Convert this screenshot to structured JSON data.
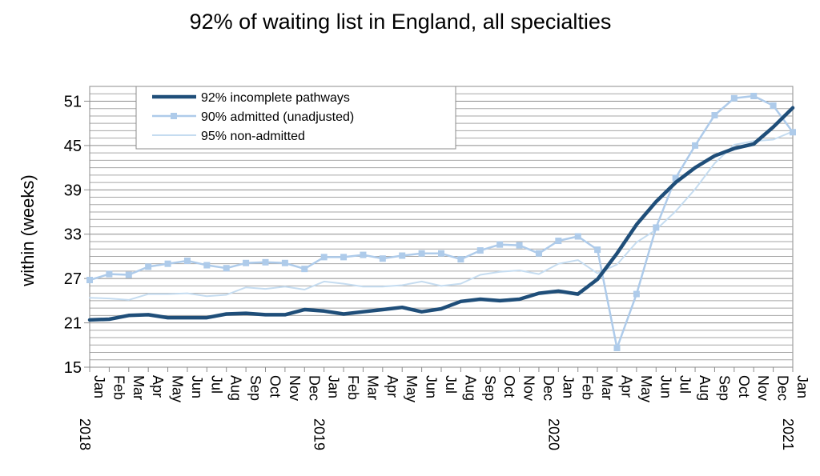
{
  "chart_data": {
    "type": "line",
    "title": "92% of waiting list in England, all specialties",
    "ylabel": "within  (weeks)",
    "xlabel": "",
    "ylim": [
      15,
      53
    ],
    "y_ticks": [
      15,
      21,
      27,
      33,
      39,
      45,
      51
    ],
    "grid": "horizontal minor gridlines every 1 week",
    "legend_position": "top-left inside plot",
    "categories": [
      "Jan",
      "Feb",
      "Mar",
      "Apr",
      "May",
      "Jun",
      "Jul",
      "Aug",
      "Sep",
      "Oct",
      "Nov",
      "Dec",
      "Jan",
      "Feb",
      "Mar",
      "Apr",
      "May",
      "Jun",
      "Jul",
      "Aug",
      "Sep",
      "Oct",
      "Nov",
      "Dec",
      "Jan",
      "Feb",
      "Mar",
      "Apr",
      "May",
      "Jun",
      "Jul",
      "Aug",
      "Sep",
      "Oct",
      "Nov",
      "Dec",
      "Jan"
    ],
    "year_labels": [
      {
        "index": 0,
        "label": "2018"
      },
      {
        "index": 12,
        "label": "2019"
      },
      {
        "index": 24,
        "label": "2020"
      },
      {
        "index": 36,
        "label": "2021"
      }
    ],
    "series": [
      {
        "name": "92% incomplete pathways",
        "color": "#1f4e79",
        "marker": "none",
        "width": "thick",
        "values": [
          21.4,
          21.5,
          22.0,
          22.1,
          21.7,
          21.7,
          21.7,
          22.2,
          22.3,
          22.1,
          22.1,
          22.8,
          22.6,
          22.2,
          22.5,
          22.8,
          23.1,
          22.5,
          22.9,
          23.9,
          24.2,
          24.0,
          24.2,
          25.0,
          25.3,
          24.9,
          26.9,
          30.4,
          34.3,
          37.4,
          40.0,
          42.0,
          43.6,
          44.6,
          45.2,
          47.5,
          50.1
        ]
      },
      {
        "name": "90% admitted (unadjusted)",
        "color": "#aecbea",
        "marker": "square",
        "width": "medium",
        "values": [
          26.8,
          27.6,
          27.5,
          28.6,
          29.0,
          29.4,
          28.8,
          28.4,
          29.1,
          29.2,
          29.1,
          28.3,
          29.9,
          29.9,
          30.2,
          29.7,
          30.1,
          30.4,
          30.4,
          29.6,
          30.8,
          31.6,
          31.5,
          30.4,
          32.1,
          32.7,
          30.9,
          17.6,
          24.9,
          33.9,
          40.6,
          45.0,
          49.1,
          51.4,
          51.7,
          50.4,
          46.8
        ]
      },
      {
        "name": "95% non-admitted",
        "color": "#c5dcf0",
        "marker": "none",
        "width": "thin",
        "values": [
          24.4,
          24.3,
          24.1,
          24.9,
          24.9,
          25.0,
          24.6,
          24.8,
          25.8,
          25.6,
          25.9,
          25.5,
          26.6,
          26.3,
          25.9,
          25.9,
          26.1,
          26.6,
          26.0,
          26.3,
          27.5,
          27.9,
          28.1,
          27.6,
          29.0,
          29.5,
          27.7,
          28.9,
          31.9,
          33.6,
          36.1,
          39.1,
          42.6,
          45.1,
          45.6,
          45.8,
          46.9
        ]
      }
    ]
  }
}
